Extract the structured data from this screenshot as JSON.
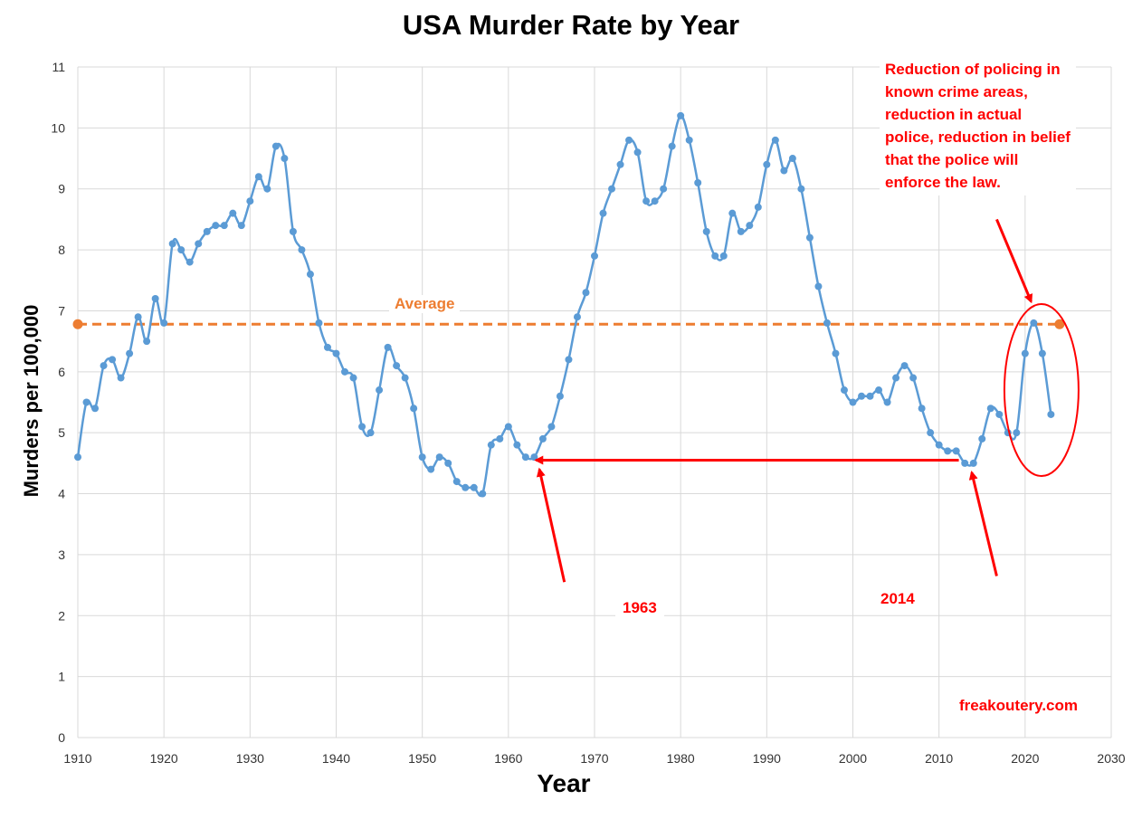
{
  "chart_data": {
    "type": "line",
    "title": "USA Murder Rate by Year",
    "xlabel": "Year",
    "ylabel": "Murders per 100,000",
    "xlim": [
      1910,
      2030
    ],
    "ylim": [
      0,
      11
    ],
    "x_ticks": [
      1910,
      1920,
      1930,
      1940,
      1950,
      1960,
      1970,
      1980,
      1990,
      2000,
      2010,
      2020,
      2030
    ],
    "y_ticks": [
      0,
      1,
      2,
      3,
      4,
      5,
      6,
      7,
      8,
      9,
      10,
      11
    ],
    "grid": true,
    "series": [
      {
        "name": "Murder rate",
        "color": "#5b9bd5",
        "x": [
          1910,
          1911,
          1912,
          1913,
          1914,
          1915,
          1916,
          1917,
          1918,
          1919,
          1920,
          1921,
          1922,
          1923,
          1924,
          1925,
          1926,
          1927,
          1928,
          1929,
          1930,
          1931,
          1932,
          1933,
          1934,
          1935,
          1936,
          1937,
          1938,
          1939,
          1940,
          1941,
          1942,
          1943,
          1944,
          1945,
          1946,
          1947,
          1948,
          1949,
          1950,
          1951,
          1952,
          1953,
          1954,
          1955,
          1956,
          1957,
          1958,
          1959,
          1960,
          1961,
          1962,
          1963,
          1964,
          1965,
          1966,
          1967,
          1968,
          1969,
          1970,
          1971,
          1972,
          1973,
          1974,
          1975,
          1976,
          1977,
          1978,
          1979,
          1980,
          1981,
          1982,
          1983,
          1984,
          1985,
          1986,
          1987,
          1988,
          1989,
          1990,
          1991,
          1992,
          1993,
          1994,
          1995,
          1996,
          1997,
          1998,
          1999,
          2000,
          2001,
          2002,
          2003,
          2004,
          2005,
          2006,
          2007,
          2008,
          2009,
          2010,
          2011,
          2012,
          2013,
          2014,
          2015,
          2016,
          2017,
          2018,
          2019,
          2020,
          2021,
          2022,
          2023
        ],
        "values": [
          4.6,
          5.5,
          5.4,
          6.1,
          6.2,
          5.9,
          6.3,
          6.9,
          6.5,
          7.2,
          6.8,
          8.1,
          8.0,
          7.8,
          8.1,
          8.3,
          8.4,
          8.4,
          8.6,
          8.4,
          8.8,
          9.2,
          9.0,
          9.7,
          9.5,
          8.3,
          8.0,
          7.6,
          6.8,
          6.4,
          6.3,
          6.0,
          5.9,
          5.1,
          5.0,
          5.7,
          6.4,
          6.1,
          5.9,
          5.4,
          4.6,
          4.4,
          4.6,
          4.5,
          4.2,
          4.1,
          4.1,
          4.0,
          4.8,
          4.9,
          5.1,
          4.8,
          4.6,
          4.6,
          4.9,
          5.1,
          5.6,
          6.2,
          6.9,
          7.3,
          7.9,
          8.6,
          9.0,
          9.4,
          9.8,
          9.6,
          8.8,
          8.8,
          9.0,
          9.7,
          10.2,
          9.8,
          9.1,
          8.3,
          7.9,
          7.9,
          8.6,
          8.3,
          8.4,
          8.7,
          9.4,
          9.8,
          9.3,
          9.5,
          9.0,
          8.2,
          7.4,
          6.8,
          6.3,
          5.7,
          5.5,
          5.6,
          5.6,
          5.7,
          5.5,
          5.9,
          6.1,
          5.9,
          5.4,
          5.0,
          4.8,
          4.7,
          4.7,
          4.5,
          4.5,
          4.9,
          5.4,
          5.3,
          5.0,
          5.0,
          6.3,
          6.8,
          6.3,
          5.3
        ]
      },
      {
        "name": "Average",
        "color": "#ed7d31",
        "x": [
          1910,
          2024
        ],
        "values": [
          6.78,
          6.78
        ]
      }
    ],
    "annotations": [
      {
        "text": "Average",
        "x": 1921,
        "y": 6.78
      },
      {
        "text": "1963",
        "x": 1963,
        "y": 4.55
      },
      {
        "text": "2014",
        "x": 2014,
        "y": 4.5
      },
      {
        "text": "Reduction of policing in known crime areas, reduction in actual police, reduction in belief that the police will enforce the law.",
        "x": 2021,
        "y": 6.8
      }
    ]
  },
  "labels": {
    "average": "Average",
    "year_1963": "1963",
    "year_2014": "2014",
    "note": "Reduction of policing in known crime areas, reduction in actual police, reduction in belief that the police will enforce the law.",
    "source": "freakoutery.com"
  },
  "colors": {
    "series_line": "#5b9bd5",
    "average_line": "#ed7d31",
    "annotation": "#ff0000",
    "grid": "#d9d9d9"
  }
}
